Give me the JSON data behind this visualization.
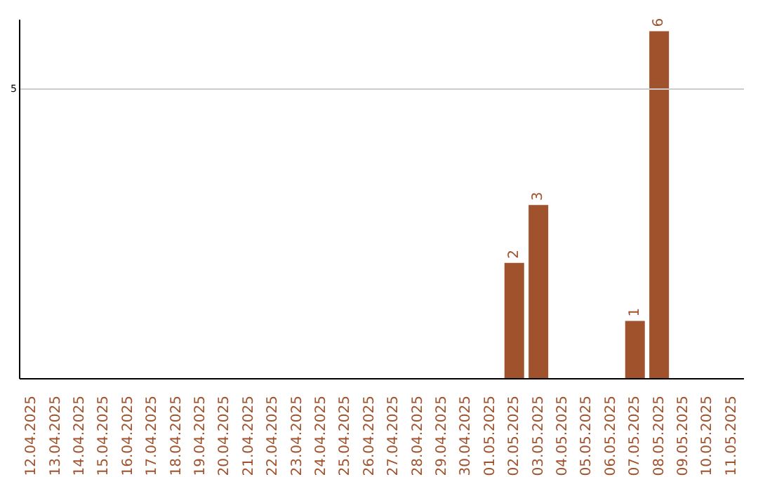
{
  "chart_data": {
    "type": "bar",
    "categories": [
      "12.04.2025",
      "13.04.2025",
      "14.04.2025",
      "15.04.2025",
      "16.04.2025",
      "17.04.2025",
      "18.04.2025",
      "19.04.2025",
      "20.04.2025",
      "21.04.2025",
      "22.04.2025",
      "23.04.2025",
      "24.04.2025",
      "25.04.2025",
      "26.04.2025",
      "27.04.2025",
      "28.04.2025",
      "29.04.2025",
      "30.04.2025",
      "01.05.2025",
      "02.05.2025",
      "03.05.2025",
      "04.05.2025",
      "05.05.2025",
      "06.05.2025",
      "07.05.2025",
      "08.05.2025",
      "09.05.2025",
      "10.05.2025",
      "11.05.2025"
    ],
    "values": [
      null,
      null,
      null,
      null,
      null,
      null,
      null,
      null,
      null,
      null,
      null,
      null,
      null,
      null,
      null,
      null,
      null,
      null,
      null,
      null,
      2,
      3,
      null,
      null,
      null,
      1,
      6,
      null,
      null,
      null
    ],
    "color": "#a0522d",
    "ylim": [
      0,
      6.2
    ],
    "ref_lines": [
      {
        "axis": "y",
        "value": 5,
        "label": "5",
        "color": "#cccccc"
      }
    ],
    "data_labels": true
  }
}
